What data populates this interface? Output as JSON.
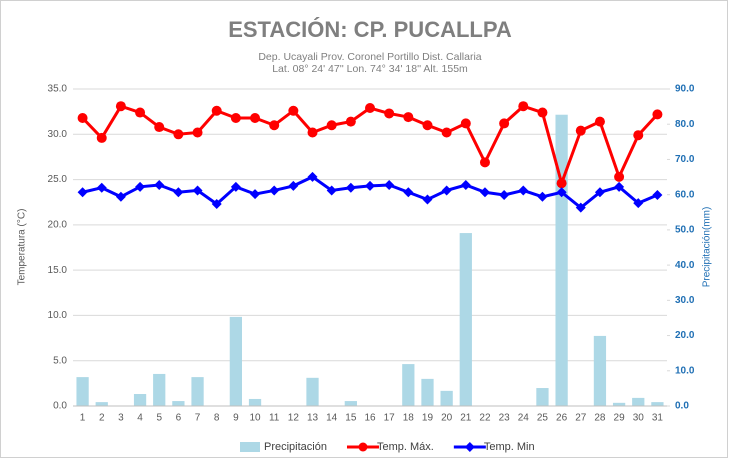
{
  "chart_data": {
    "type": "combo",
    "title": "ESTACIÓN: CP. PUCALLPA",
    "subtitle": [
      "Dep. Ucayali Prov. Coronel Portillo Dist. Callaria",
      "Lat. 08° 24' 47'' Lon. 74° 34' 18'' Alt. 155m"
    ],
    "y_label": "Temperatura (°C)",
    "y2_label": "Precipitación(mm)",
    "categories": [
      "1",
      "2",
      "3",
      "4",
      "5",
      "6",
      "7",
      "8",
      "9",
      "10",
      "11",
      "12",
      "13",
      "14",
      "15",
      "16",
      "17",
      "18",
      "19",
      "20",
      "21",
      "22",
      "23",
      "24",
      "25",
      "26",
      "27",
      "28",
      "29",
      "30",
      "31"
    ],
    "ylim": [
      0,
      35
    ],
    "yticks": [
      {
        "value": 0,
        "label": "0.0"
      },
      {
        "value": 5,
        "label": "5.0"
      },
      {
        "value": 10,
        "label": "10.0"
      },
      {
        "value": 15,
        "label": "15.0"
      },
      {
        "value": 20,
        "label": "20.0"
      },
      {
        "value": 25,
        "label": "25.0"
      },
      {
        "value": 30,
        "label": "30.0"
      },
      {
        "value": 35,
        "label": "35.0"
      }
    ],
    "y2lim": [
      0,
      90
    ],
    "y2ticks": [
      {
        "value": 0,
        "label": "0.0"
      },
      {
        "value": 10,
        "label": "10.0"
      },
      {
        "value": 20,
        "label": "20.0"
      },
      {
        "value": 30,
        "label": "30.0"
      },
      {
        "value": 40,
        "label": "40.0"
      },
      {
        "value": 50,
        "label": "50.0"
      },
      {
        "value": 60,
        "label": "60.0"
      },
      {
        "value": 70,
        "label": "70.0"
      },
      {
        "value": 80,
        "label": "80.0"
      },
      {
        "value": 90,
        "label": "90.0"
      }
    ],
    "grid": true,
    "legend": "bottom",
    "series": [
      {
        "name": "Precipitación",
        "kind": "bar",
        "axis": "y2",
        "color": "#add8e6",
        "values": [
          8.2,
          1.1,
          0,
          3.4,
          9.1,
          1.4,
          8.2,
          0,
          25.3,
          2.0,
          0,
          0,
          8.0,
          0,
          1.4,
          0,
          0,
          11.9,
          7.7,
          4.3,
          49.1,
          0,
          0,
          0,
          5.1,
          82.7,
          0,
          19.9,
          0.9,
          2.3,
          1.1
        ]
      },
      {
        "name": "Temp. Máx.",
        "kind": "line",
        "marker": "circle",
        "color": "#ff0000",
        "values": [
          31.8,
          29.6,
          33.1,
          32.4,
          30.8,
          30.0,
          30.2,
          32.6,
          31.8,
          31.8,
          31.0,
          32.6,
          30.2,
          31.0,
          31.4,
          32.9,
          32.3,
          31.9,
          31.0,
          30.2,
          31.2,
          26.9,
          31.2,
          33.1,
          32.4,
          24.6,
          30.4,
          31.4,
          25.3,
          29.9,
          32.2
        ]
      },
      {
        "name": "Temp. Min",
        "kind": "line",
        "marker": "diamond",
        "color": "#0000ff",
        "values": [
          23.6,
          24.1,
          23.1,
          24.2,
          24.4,
          23.6,
          23.8,
          22.3,
          24.2,
          23.4,
          23.8,
          24.3,
          25.3,
          23.8,
          24.1,
          24.3,
          24.4,
          23.6,
          22.8,
          23.8,
          24.4,
          23.6,
          23.3,
          23.8,
          23.1,
          23.6,
          21.9,
          23.6,
          24.2,
          22.4,
          23.3
        ]
      }
    ]
  }
}
